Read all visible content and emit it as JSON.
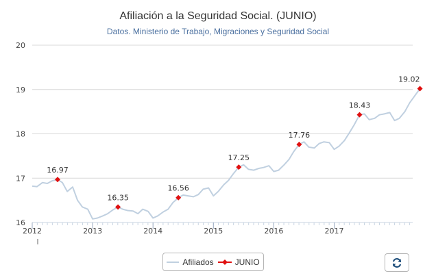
{
  "chart_data": {
    "type": "line",
    "title": "Afiliación a la Seguridad Social. (JUNIO)",
    "subtitle": "Datos. Ministerio de Trabajo, Migraciones y Seguridad Social",
    "xlabel": "",
    "ylabel": "",
    "xlim": [
      2012.0,
      2018.3
    ],
    "ylim": [
      16,
      20
    ],
    "yticks": [
      "16",
      "17",
      "18",
      "19",
      "20"
    ],
    "xticks": [
      "2012",
      "2013",
      "2014",
      "2015",
      "2016",
      "2017"
    ],
    "grid": true,
    "legend_position": "bottom-center",
    "series": [
      {
        "name": "Afiliados",
        "color": "#c0d0e0",
        "x": [
          2012.0,
          2012.08,
          2012.17,
          2012.25,
          2012.33,
          2012.42,
          2012.5,
          2012.58,
          2012.67,
          2012.75,
          2012.83,
          2012.92,
          2013.0,
          2013.08,
          2013.17,
          2013.25,
          2013.33,
          2013.42,
          2013.5,
          2013.58,
          2013.67,
          2013.75,
          2013.83,
          2013.92,
          2014.0,
          2014.08,
          2014.17,
          2014.25,
          2014.33,
          2014.42,
          2014.5,
          2014.58,
          2014.67,
          2014.75,
          2014.83,
          2014.92,
          2015.0,
          2015.08,
          2015.17,
          2015.25,
          2015.33,
          2015.42,
          2015.5,
          2015.58,
          2015.67,
          2015.75,
          2015.83,
          2015.92,
          2016.0,
          2016.08,
          2016.17,
          2016.25,
          2016.33,
          2016.42,
          2016.5,
          2016.58,
          2016.67,
          2016.75,
          2016.83,
          2016.92,
          2017.0,
          2017.08,
          2017.17,
          2017.25,
          2017.33,
          2017.42,
          2017.5,
          2017.58,
          2017.67,
          2017.75,
          2017.83,
          2017.92,
          2018.0,
          2018.08,
          2018.17,
          2018.25
        ],
        "values": [
          16.82,
          16.81,
          16.9,
          16.88,
          16.94,
          16.97,
          16.9,
          16.7,
          16.8,
          16.5,
          16.35,
          16.3,
          16.08,
          16.1,
          16.15,
          16.2,
          16.28,
          16.35,
          16.3,
          16.27,
          16.26,
          16.2,
          16.3,
          16.25,
          16.1,
          16.15,
          16.24,
          16.3,
          16.45,
          16.56,
          16.62,
          16.6,
          16.58,
          16.63,
          16.75,
          16.78,
          16.6,
          16.7,
          16.85,
          16.95,
          17.1,
          17.25,
          17.3,
          17.2,
          17.18,
          17.22,
          17.24,
          17.28,
          17.15,
          17.18,
          17.3,
          17.42,
          17.6,
          17.76,
          17.82,
          17.7,
          17.68,
          17.78,
          17.82,
          17.8,
          17.65,
          17.72,
          17.85,
          18.02,
          18.2,
          18.43,
          18.45,
          18.32,
          18.35,
          18.43,
          18.45,
          18.48,
          18.3,
          18.35,
          18.5,
          18.7
        ]
      },
      {
        "name": "JUNIO",
        "color": "#e01010",
        "x": [
          2012.42,
          2013.42,
          2014.42,
          2015.42,
          2016.42,
          2017.42,
          2018.42
        ],
        "values": [
          16.97,
          16.35,
          16.56,
          17.25,
          17.76,
          18.43,
          19.02
        ],
        "labels": [
          "16.97",
          "16.35",
          "16.56",
          "17.25",
          "17.76",
          "18.43",
          "19.02"
        ]
      }
    ]
  },
  "legend": {
    "items": [
      "Afiliados",
      "JUNIO"
    ]
  },
  "controls": {
    "refresh_icon": "refresh-icon"
  }
}
